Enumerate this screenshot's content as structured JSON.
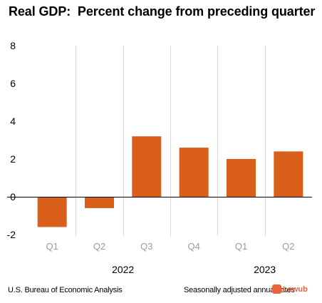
{
  "title": "Real GDP:  Percent change from preceding quarter",
  "footer": {
    "source": "U.S. Bureau of Economic Analysis",
    "note": "Seasonally adjusted annual rates"
  },
  "watermark": "Lewub",
  "colors": {
    "bar": "#d95f1a",
    "grid": "#d9d9d9",
    "tick": "#9a9a9a"
  },
  "chart_data": {
    "type": "bar",
    "title": "Real GDP:  Percent change from preceding quarter",
    "categories": [
      "Q1",
      "Q2",
      "Q3",
      "Q4",
      "Q1",
      "Q2"
    ],
    "groups": [
      {
        "label": "2022",
        "span": [
          0,
          3
        ]
      },
      {
        "label": "2023",
        "span": [
          4,
          5
        ]
      }
    ],
    "values": [
      -1.6,
      -0.6,
      3.2,
      2.6,
      2.0,
      2.4
    ],
    "ylim": [
      -2,
      8
    ],
    "yticks": [
      "8",
      "6",
      "4",
      "2",
      "0",
      "-2"
    ],
    "xlabel": "",
    "ylabel": "",
    "grid": "vertical separators"
  }
}
